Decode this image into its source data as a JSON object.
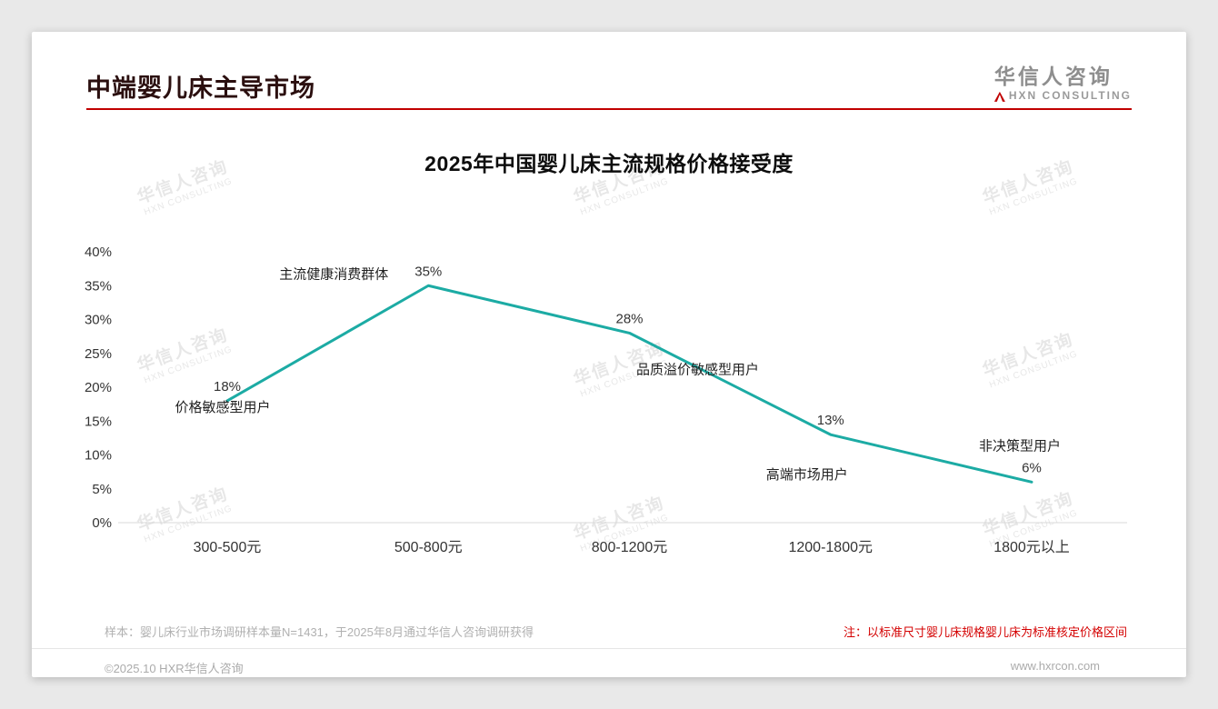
{
  "page": {
    "header_title": "中端婴儿床主导市场",
    "logo": {
      "cn": "华信人咨询",
      "en": "HXN CONSULTING"
    },
    "watermark": {
      "line1": "华信人咨询",
      "line2": "HXN CONSULTING"
    },
    "footer": {
      "sample_note": "样本：婴儿床行业市场调研样本量N=1431，于2025年8月通过华信人咨询调研获得",
      "red_note": "注：以标准尺寸婴儿床规格婴儿床为标准核定价格区间",
      "copyright": "©2025.10 HXR华信人咨询",
      "website": "www.hxrcon.com"
    }
  },
  "chart_data": {
    "type": "line",
    "title": "2025年中国婴儿床主流规格价格接受度",
    "categories": [
      "300-500元",
      "500-800元",
      "800-1200元",
      "1200-1800元",
      "1800元以上"
    ],
    "values": [
      18,
      35,
      28,
      13,
      6
    ],
    "value_labels": [
      "18%",
      "35%",
      "28%",
      "13%",
      "6%"
    ],
    "annotations": [
      {
        "label": "价格敏感型用户",
        "point": 0
      },
      {
        "label": "主流健康消费群体",
        "point": 1
      },
      {
        "label": "品质溢价敏感型用户",
        "point": 2
      },
      {
        "label": "高端市场用户",
        "point": 3
      },
      {
        "label": "非决策型用户",
        "point": 4
      }
    ],
    "xlabel": "",
    "ylabel": "",
    "ylim": [
      0,
      40
    ],
    "ytick_step": 5,
    "ytick_labels": [
      "0%",
      "5%",
      "10%",
      "15%",
      "20%",
      "25%",
      "30%",
      "35%",
      "40%"
    ],
    "line_color": "#1CABA4",
    "grid": false,
    "legend": "none"
  }
}
